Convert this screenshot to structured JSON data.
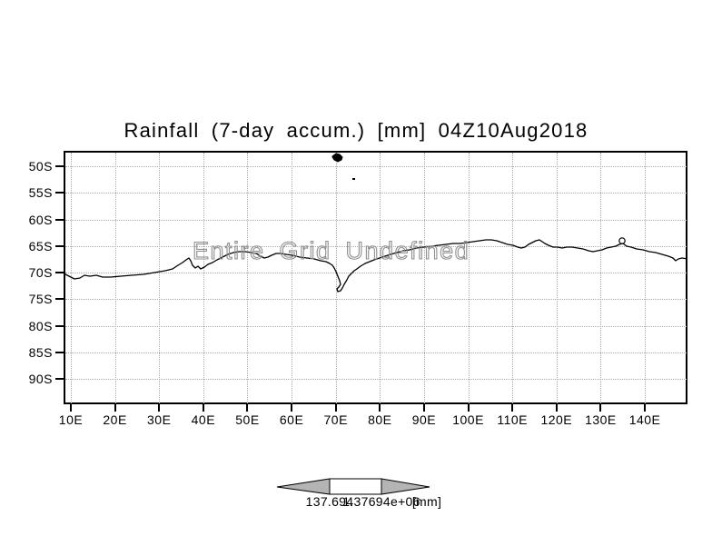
{
  "title": "Rainfall (7-day accum.) [mm] 04Z10Aug2018",
  "map": {
    "undefined_message": "Entire Grid Undefined",
    "lat_labels": [
      "50S",
      "55S",
      "60S",
      "65S",
      "70S",
      "75S",
      "80S",
      "85S",
      "90S"
    ],
    "lon_labels": [
      "10E",
      "20E",
      "30E",
      "40E",
      "50E",
      "60E",
      "70E",
      "80E",
      "90E",
      "100E",
      "110E",
      "120E",
      "130E",
      "140E"
    ]
  },
  "colorbar": {
    "left_value": "137.694",
    "right_value": "1.37694e+06",
    "units": "[mm]"
  },
  "colors": {
    "background": "#ffffff",
    "frame": "#000000",
    "gridline": "#ababab",
    "coastline": "#000000",
    "message_outline": "#8f8f8f",
    "colorbar_triangle_fill": "#b4b4b4"
  },
  "chart_data": {
    "type": "heatmap",
    "title": "Rainfall (7-day accum.) [mm] 04Z10Aug2018",
    "x_tick_labels": [
      "10E",
      "20E",
      "30E",
      "40E",
      "50E",
      "60E",
      "70E",
      "80E",
      "90E",
      "100E",
      "110E",
      "120E",
      "130E",
      "140E"
    ],
    "y_tick_labels": [
      "50S",
      "55S",
      "60S",
      "65S",
      "70S",
      "75S",
      "80S",
      "85S",
      "90S"
    ],
    "xlabel": "",
    "ylabel": "",
    "grid": "dotted, gray, on",
    "legend_position": "none",
    "series": [],
    "values": [],
    "annotation": "Entire Grid Undefined (no data values rendered; only Antarctic coastline basemap shown)",
    "colorbar": {
      "shape": "left arrow + single white box + right arrow",
      "boundary_labels": [
        "137.694",
        "1.37694e+06"
      ],
      "units": "[mm]"
    }
  }
}
